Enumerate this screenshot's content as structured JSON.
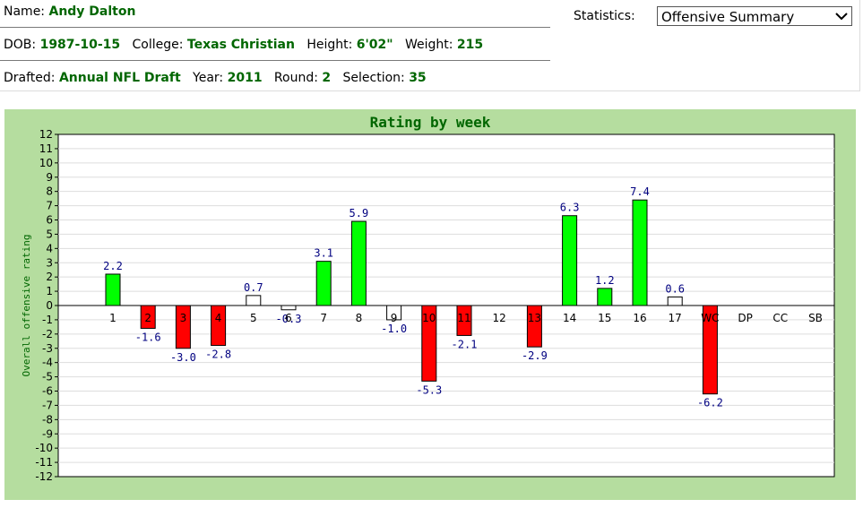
{
  "player": {
    "name_label": "Name:",
    "name": "Andy Dalton",
    "dob_label": "DOB:",
    "dob": "1987-10-15",
    "college_label": "College:",
    "college": "Texas Christian",
    "height_label": "Height:",
    "height": "6'02\"",
    "weight_label": "Weight:",
    "weight": "215",
    "drafted_label": "Drafted:",
    "drafted": "Annual NFL Draft",
    "year_label": "Year:",
    "year": "2011",
    "round_label": "Round:",
    "round": "2",
    "selection_label": "Selection:",
    "selection": "35"
  },
  "statistics": {
    "label": "Statistics:",
    "selected": "Offensive Summary"
  },
  "chart_data": {
    "type": "bar",
    "title": "Rating by week",
    "ylabel": "Overall offensive rating",
    "xlabel": "",
    "ylim": [
      -12,
      12
    ],
    "grid": true,
    "categories": [
      "1",
      "2",
      "3",
      "4",
      "5",
      "6",
      "7",
      "8",
      "9",
      "10",
      "11",
      "12",
      "13",
      "14",
      "15",
      "16",
      "17",
      "WC",
      "DP",
      "CC",
      "SB"
    ],
    "values": [
      2.2,
      -1.6,
      -3.0,
      -2.8,
      0.7,
      -0.3,
      3.1,
      5.9,
      -1.0,
      -5.3,
      -2.1,
      null,
      -2.9,
      6.3,
      1.2,
      7.4,
      0.6,
      -6.2,
      null,
      null,
      null
    ],
    "value_labels": [
      "2.2",
      "-1.6",
      "-3.0",
      "-2.8",
      "0.7",
      "-0.3",
      "3.1",
      "5.9",
      "-1.0",
      "-5.3",
      "-2.1",
      "",
      "-2.9",
      "6.3",
      "1.2",
      "7.4",
      "0.6",
      "-6.2",
      "",
      "",
      ""
    ],
    "colors": {
      "positive": "#00ff00",
      "negative": "#ff0000",
      "neutral": "#ffffff",
      "title": "#006600",
      "ylabel": "#006600",
      "value_label": "#000080",
      "background": "#b5dd9f"
    }
  }
}
